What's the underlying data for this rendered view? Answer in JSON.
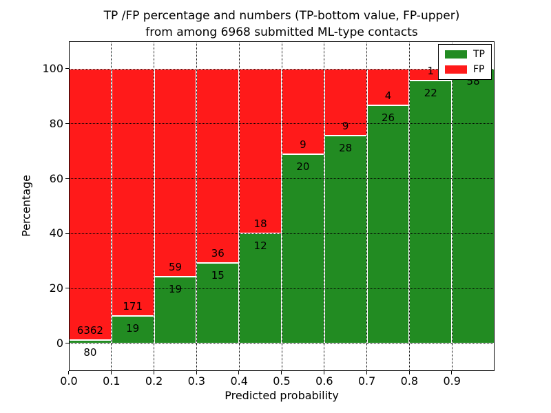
{
  "chart_data": {
    "type": "bar",
    "stacked": true,
    "orientation": "vertical",
    "title": "TP /FP percentage and numbers (TP-bottom value, FP-upper) from among 6968 submitted ML-type contacts",
    "title_lines": [
      "TP /FP percentage and numbers (TP-bottom value, FP-upper)",
      "from among 6968 submitted ML-type contacts"
    ],
    "xlabel": "Predicted probability",
    "ylabel": "Percentage",
    "total_contacts": 6968,
    "categories": [
      "0.0-0.1",
      "0.1-0.2",
      "0.2-0.3",
      "0.3-0.4",
      "0.4-0.5",
      "0.5-0.6",
      "0.6-0.7",
      "0.7-0.8",
      "0.8-0.9",
      "0.9-1.0"
    ],
    "series": [
      {
        "name": "TP",
        "color": "#228B22",
        "values": [
          80,
          19,
          19,
          15,
          12,
          20,
          28,
          26,
          22,
          58
        ]
      },
      {
        "name": "FP",
        "color": "#FF1A1A",
        "values": [
          6362,
          171,
          59,
          36,
          18,
          9,
          9,
          4,
          1,
          0
        ]
      }
    ],
    "tp_percentages": [
      1.2,
      10.0,
      24.4,
      29.4,
      40.0,
      69.0,
      75.7,
      86.7,
      95.7,
      100.0
    ],
    "bar_width": 0.1,
    "x_ticklabels": [
      "0.0",
      "0.1",
      "0.2",
      "0.3",
      "0.4",
      "0.5",
      "0.6",
      "0.7",
      "0.8",
      "0.9"
    ],
    "y_tick_values": [
      0,
      20,
      40,
      60,
      80,
      100
    ],
    "y_ticklabels": [
      "0",
      "20",
      "40",
      "60",
      "80",
      "100"
    ],
    "xlim": [
      0.0,
      1.0
    ],
    "ylim": [
      -10,
      110
    ],
    "grid": "dotted, on top of bars",
    "bar_edge_color": "#FFFFFF",
    "legend": {
      "position": "upper right",
      "entries": [
        "TP",
        "FP"
      ]
    }
  }
}
